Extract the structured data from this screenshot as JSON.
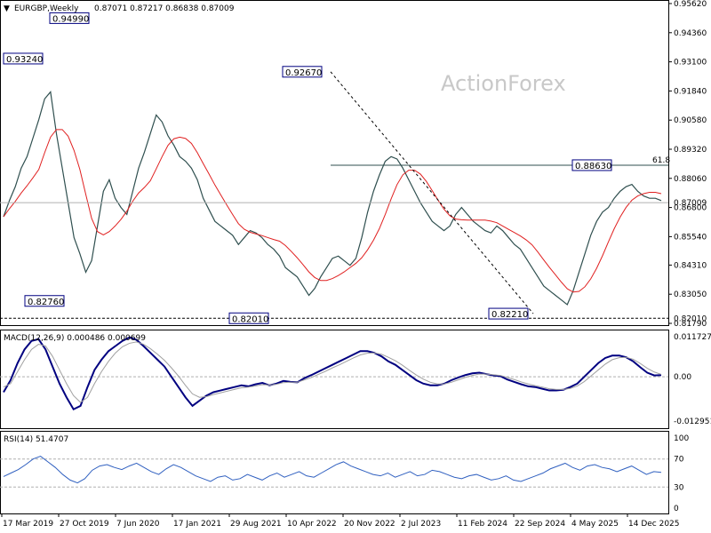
{
  "header": {
    "symbol_info": "EURGBP,Weekly",
    "ohlc": "0.87071 0.87217 0.86838 0.87009"
  },
  "watermark": "ActionForex",
  "chart_data": [
    {
      "type": "ohlc_line",
      "panel": "price",
      "y_ticks": [
        "0.95620",
        "0.94360",
        "0.93100",
        "0.91840",
        "0.90580",
        "0.89320",
        "0.88060",
        "0.86800",
        "0.85540",
        "0.84310",
        "0.83050",
        "0.81790"
      ],
      "ylim": [
        0.8179,
        0.9562
      ],
      "current_price": "0.87009",
      "level_label": "0.82010",
      "fib_label": "61.8",
      "annotations": [
        "0.93240",
        "0.94990",
        "0.82760",
        "0.92670",
        "0.82010",
        "0.82210",
        "0.88630"
      ],
      "close_series": [
        0.864,
        0.871,
        0.877,
        0.885,
        0.89,
        0.898,
        0.906,
        0.915,
        0.918,
        0.9,
        0.885,
        0.87,
        0.855,
        0.848,
        0.84,
        0.845,
        0.86,
        0.875,
        0.88,
        0.872,
        0.868,
        0.865,
        0.875,
        0.885,
        0.892,
        0.9,
        0.908,
        0.905,
        0.899,
        0.895,
        0.89,
        0.888,
        0.885,
        0.88,
        0.872,
        0.867,
        0.862,
        0.86,
        0.858,
        0.856,
        0.852,
        0.855,
        0.858,
        0.857,
        0.855,
        0.852,
        0.85,
        0.847,
        0.842,
        0.84,
        0.838,
        0.834,
        0.83,
        0.833,
        0.838,
        0.842,
        0.846,
        0.847,
        0.845,
        0.843,
        0.846,
        0.855,
        0.866,
        0.875,
        0.882,
        0.888,
        0.89,
        0.889,
        0.885,
        0.88,
        0.875,
        0.87,
        0.866,
        0.862,
        0.86,
        0.858,
        0.86,
        0.865,
        0.868,
        0.865,
        0.862,
        0.86,
        0.858,
        0.857,
        0.86,
        0.858,
        0.855,
        0.852,
        0.85,
        0.846,
        0.842,
        0.838,
        0.834,
        0.832,
        0.83,
        0.828,
        0.826,
        0.832,
        0.84,
        0.848,
        0.856,
        0.862,
        0.866,
        0.868,
        0.872,
        0.875,
        0.877,
        0.878,
        0.875,
        0.873,
        0.872,
        0.872,
        0.871
      ]
    },
    {
      "type": "line",
      "panel": "macd",
      "label": "MACD(12,26,9) 0.000486 0.000699",
      "y_ticks": [
        "0.011727",
        "0.00",
        "-0.012951"
      ],
      "ylim": [
        -0.012951,
        0.011727
      ],
      "series": [
        {
          "values": [
            -0.0045,
            -0.001,
            0.004,
            0.008,
            0.0105,
            0.011,
            0.008,
            0.003,
            -0.002,
            -0.006,
            -0.0095,
            -0.0085,
            -0.003,
            0.002,
            0.005,
            0.0075,
            0.009,
            0.0105,
            0.0115,
            0.0108,
            0.009,
            0.007,
            0.005,
            0.003,
            0.0,
            -0.003,
            -0.006,
            -0.0085,
            -0.007,
            -0.0055,
            -0.0045,
            -0.004,
            -0.0035,
            -0.003,
            -0.0025,
            -0.0028,
            -0.0022,
            -0.0018,
            -0.0025,
            -0.002,
            -0.0012,
            -0.0015,
            -0.0016,
            -0.0004,
            0.0005,
            0.0015,
            0.0025,
            0.0035,
            0.0045,
            0.0055,
            0.0065,
            0.0075,
            0.0075,
            0.007,
            0.006,
            0.0045,
            0.0035,
            0.002,
            0.0005,
            -0.001,
            -0.002,
            -0.0025,
            -0.0025,
            -0.002,
            -0.001,
            -0.0002,
            0.0005,
            0.001,
            0.0012,
            0.0008,
            0.0004,
            0.0002,
            -0.0008,
            -0.0015,
            -0.0022,
            -0.0028,
            -0.003,
            -0.0035,
            -0.004,
            -0.004,
            -0.0038,
            -0.003,
            -0.002,
            0.0,
            0.002,
            0.004,
            0.0055,
            0.0062,
            0.0062,
            0.0057,
            0.0045,
            0.0028,
            0.0012,
            0.0004,
            0.0005
          ]
        },
        {
          "values": [
            -0.003,
            -0.002,
            0.0015,
            0.005,
            0.008,
            0.0095,
            0.009,
            0.006,
            0.002,
            -0.002,
            -0.0055,
            -0.0075,
            -0.006,
            -0.002,
            0.0015,
            0.0045,
            0.007,
            0.0088,
            0.0098,
            0.0102,
            0.0095,
            0.0082,
            0.0066,
            0.0048,
            0.0026,
            0.0002,
            -0.0025,
            -0.005,
            -0.006,
            -0.0058,
            -0.0052,
            -0.0047,
            -0.0042,
            -0.0037,
            -0.0032,
            -0.003,
            -0.0027,
            -0.0023,
            -0.0024,
            -0.0022,
            -0.0017,
            -0.0016,
            -0.0016,
            -0.0009,
            -0.0002,
            0.0007,
            0.0016,
            0.0026,
            0.0035,
            0.0045,
            0.0055,
            0.0064,
            0.0069,
            0.007,
            0.0066,
            0.0057,
            0.0047,
            0.0034,
            0.0019,
            0.0005,
            -0.0007,
            -0.0016,
            -0.0021,
            -0.0021,
            -0.0016,
            -0.0009,
            -0.0002,
            0.0004,
            0.0008,
            0.0008,
            0.0006,
            0.0004,
            -0.0002,
            -0.0008,
            -0.0015,
            -0.0021,
            -0.0026,
            -0.003,
            -0.0035,
            -0.0037,
            -0.0037,
            -0.0034,
            -0.0027,
            -0.0014,
            0.0003,
            0.002,
            0.0037,
            0.005,
            0.0056,
            0.0057,
            0.0051,
            0.0039,
            0.0025,
            0.0014,
            0.0007
          ]
        }
      ]
    },
    {
      "type": "line",
      "panel": "rsi",
      "label": "RSI(14) 51.4707",
      "y_ticks": [
        "100",
        "70",
        "30",
        "0"
      ],
      "ylim": [
        0,
        100
      ],
      "levels": [
        70,
        30
      ],
      "series": [
        {
          "values": [
            45,
            50,
            55,
            62,
            70,
            74,
            66,
            58,
            48,
            40,
            36,
            42,
            54,
            60,
            62,
            58,
            55,
            60,
            64,
            58,
            52,
            48,
            56,
            62,
            58,
            52,
            46,
            42,
            38,
            44,
            46,
            40,
            42,
            48,
            44,
            40,
            46,
            50,
            44,
            48,
            52,
            46,
            44,
            50,
            56,
            62,
            66,
            60,
            56,
            52,
            48,
            46,
            50,
            44,
            48,
            52,
            46,
            48,
            54,
            52,
            48,
            44,
            42,
            46,
            48,
            44,
            40,
            42,
            46,
            40,
            38,
            42,
            46,
            50,
            56,
            60,
            64,
            58,
            54,
            60,
            62,
            58,
            56,
            52,
            56,
            60,
            54,
            48,
            52,
            51
          ]
        }
      ]
    }
  ],
  "x_axis": {
    "labels": [
      "17 Mar 2019",
      "27 Oct 2019",
      "7 Jun 2020",
      "17 Jan 2021",
      "29 Aug 2021",
      "10 Apr 2022",
      "20 Nov 2022",
      "2 Jul 2023",
      "11 Feb 2024",
      "22 Sep 2024",
      "4 May 2025",
      "14 Dec 2025"
    ]
  },
  "colors": {
    "price": "#2f4f4f",
    "ma": "#e02020",
    "macd": "#000080",
    "signal": "#a0a0a0",
    "rsi": "#3060c0",
    "grid": "#b0b0b0",
    "tag_bg": "#ffffff",
    "tag_border": "#000080"
  }
}
